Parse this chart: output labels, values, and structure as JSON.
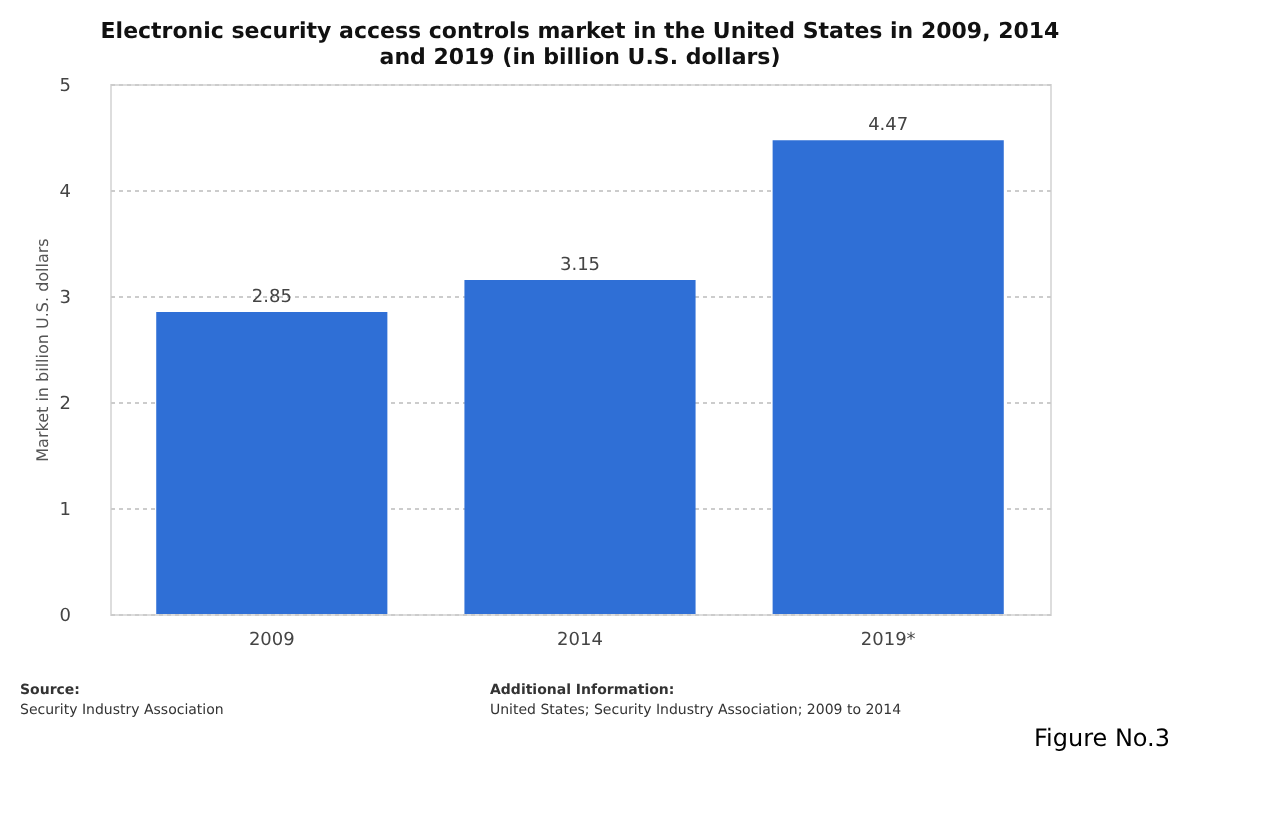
{
  "chart_data": {
    "type": "bar",
    "title": [
      "Electronic security access controls market in the United States in 2009, 2014",
      "and 2019 (in billion U.S. dollars)"
    ],
    "categories": [
      "2009",
      "2014",
      "2019*"
    ],
    "values": [
      2.85,
      3.15,
      4.47
    ],
    "color": "#2f6fd6",
    "ylabel": "Market in billion U.S. dollars",
    "ylim": [
      0,
      5
    ],
    "yticks": [
      0,
      1,
      2,
      3,
      4,
      5
    ],
    "grid": "y",
    "data_labels": true,
    "annotations": [
      "Source:",
      "Security Industry Association",
      "Additional Information:",
      "United States; Security Industry Association; 2009 to 2014",
      "Figure No.3"
    ]
  }
}
